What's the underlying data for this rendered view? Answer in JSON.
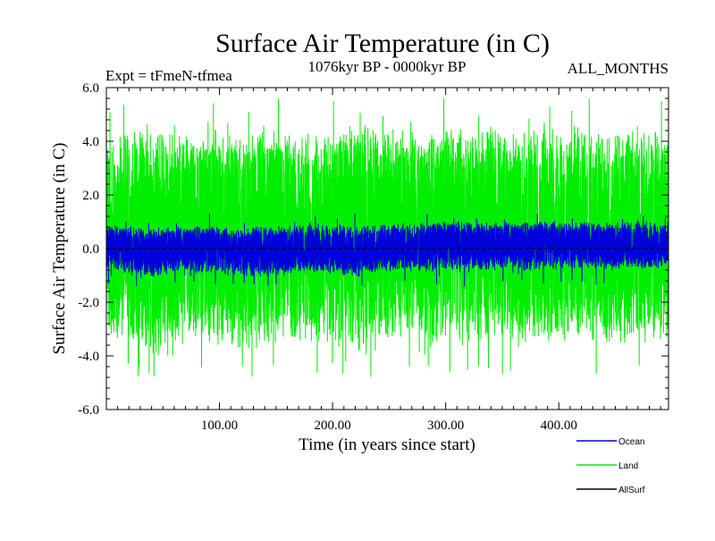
{
  "chart_data": {
    "type": "line",
    "title": "Surface Air Temperature (in C)",
    "subtitle_left": "Expt = tFmeN-tfmea",
    "subtitle_center": "1076kyr BP - 0000kyr BP",
    "subtitle_right": "ALL_MONTHS",
    "xlabel": "Time (in years since start)",
    "ylabel": "Surface Air Temperature (in C)",
    "xlim": [
      0,
      497
    ],
    "ylim": [
      -6.0,
      6.0
    ],
    "x_ticks": [
      100,
      200,
      300,
      400
    ],
    "x_tick_labels": [
      "100.00",
      "200.00",
      "300.00",
      "400.00"
    ],
    "y_ticks": [
      -6,
      -4,
      -2,
      0,
      2,
      4,
      6
    ],
    "y_tick_labels": [
      "-6.0",
      "-4.0",
      "-2.0",
      "0.0",
      "2.0",
      "4.0",
      "6.0"
    ],
    "grid": false,
    "legend_position": "bottom-right",
    "series": [
      {
        "name": "Land",
        "color": "#00ee00",
        "draw_order": 1,
        "samples_per_year": 12,
        "upper_envelope": {
          "x": [
            0,
            20,
            40,
            60,
            80,
            100,
            120,
            140,
            160,
            180,
            200,
            220,
            240,
            260,
            280,
            300,
            320,
            340,
            360,
            380,
            400,
            420,
            440,
            460,
            480,
            497
          ],
          "y": [
            4.3,
            4.6,
            4.7,
            4.5,
            4.4,
            4.6,
            4.5,
            4.7,
            4.4,
            4.6,
            4.5,
            4.8,
            4.7,
            4.6,
            4.5,
            4.7,
            4.8,
            4.6,
            4.5,
            4.7,
            4.6,
            4.8,
            4.5,
            4.6,
            4.7,
            4.4
          ]
        },
        "lower_envelope": {
          "x": [
            0,
            20,
            40,
            60,
            80,
            100,
            120,
            140,
            160,
            180,
            200,
            220,
            240,
            260,
            280,
            300,
            320,
            340,
            360,
            380,
            400,
            420,
            440,
            460,
            480,
            497
          ],
          "y": [
            -3.5,
            -3.8,
            -4.2,
            -3.7,
            -3.6,
            -3.9,
            -4.0,
            -3.6,
            -3.5,
            -3.8,
            -3.7,
            -4.1,
            -3.6,
            -3.5,
            -3.7,
            -3.6,
            -3.8,
            -3.4,
            -3.6,
            -3.7,
            -3.6,
            -3.5,
            -3.9,
            -3.6,
            -3.7,
            -3.4
          ]
        },
        "peak_max": 5.6,
        "peak_min": -4.8
      },
      {
        "name": "Ocean",
        "color": "#0000dd",
        "draw_order": 2,
        "samples_per_year": 12,
        "upper_envelope": {
          "x": [
            0,
            20,
            40,
            60,
            80,
            100,
            120,
            140,
            160,
            180,
            200,
            220,
            240,
            260,
            280,
            300,
            320,
            340,
            360,
            380,
            400,
            420,
            440,
            460,
            480,
            497
          ],
          "y": [
            0.9,
            0.85,
            0.8,
            0.85,
            0.9,
            0.85,
            0.8,
            0.85,
            0.9,
            0.95,
            0.95,
            0.9,
            0.95,
            0.95,
            1.0,
            1.05,
            1.05,
            1.0,
            1.05,
            1.05,
            1.1,
            1.0,
            1.0,
            1.05,
            1.05,
            1.0
          ]
        },
        "lower_envelope": {
          "x": [
            0,
            20,
            40,
            60,
            80,
            100,
            120,
            140,
            160,
            180,
            200,
            220,
            240,
            260,
            280,
            300,
            320,
            340,
            360,
            380,
            400,
            420,
            440,
            460,
            480,
            497
          ],
          "y": [
            -0.8,
            -0.95,
            -1.1,
            -0.95,
            -0.9,
            -1.0,
            -1.05,
            -1.1,
            -0.95,
            -0.9,
            -0.95,
            -1.15,
            -0.9,
            -0.85,
            -0.9,
            -0.85,
            -0.8,
            -0.85,
            -0.8,
            -0.85,
            -0.8,
            -0.75,
            -0.8,
            -0.75,
            -0.8,
            -0.7
          ]
        },
        "peak_max": 1.3,
        "peak_min": -1.4
      },
      {
        "name": "AllSurf",
        "color": "#000000",
        "draw_order": 3,
        "x": [
          0,
          497
        ],
        "y": [
          0.0,
          0.0
        ]
      }
    ],
    "legend": [
      {
        "label": "Ocean",
        "color": "#0000dd"
      },
      {
        "label": "Land",
        "color": "#00ee00"
      },
      {
        "label": "AllSurf",
        "color": "#000000"
      }
    ]
  }
}
